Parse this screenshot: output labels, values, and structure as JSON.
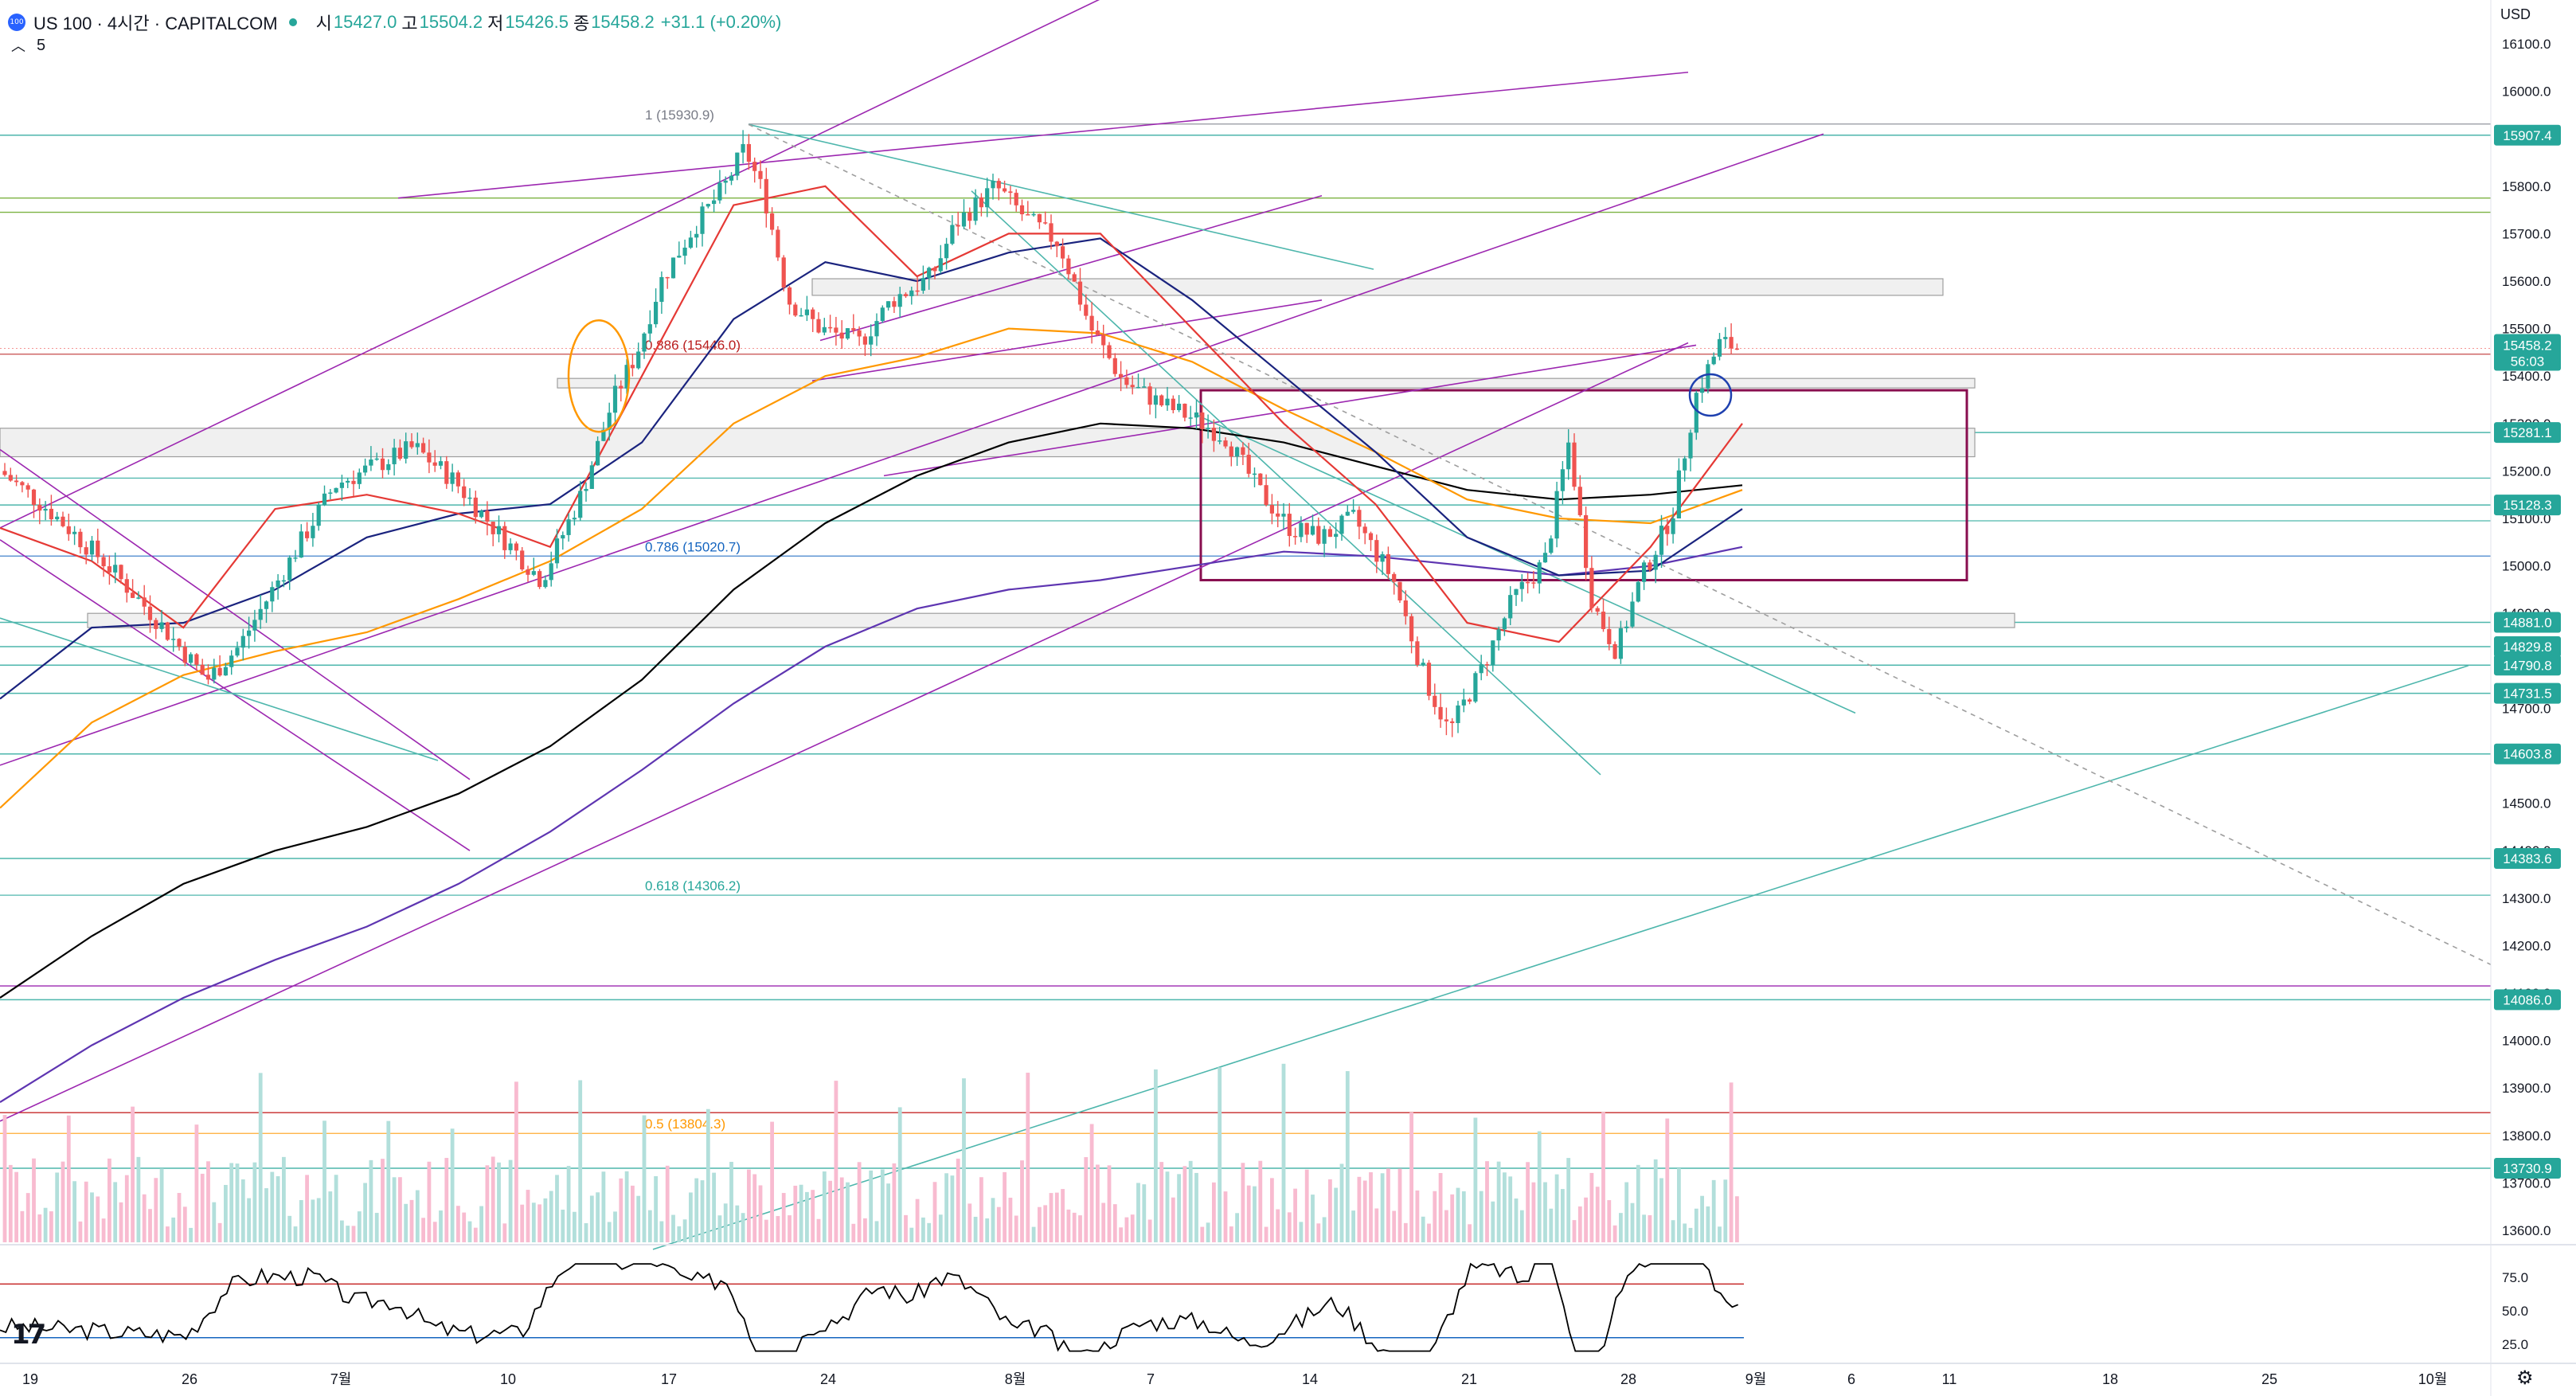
{
  "header": {
    "symbol_badge": "100",
    "title": "US 100 · 4시간 · CAPITALCOM",
    "open_label": "시",
    "open": "15427.0",
    "high_label": "고",
    "high": "15504.2",
    "low_label": "저",
    "low": "15426.5",
    "close_label": "종",
    "close": "15458.2",
    "change": "+31.1 (+0.20%)",
    "indicator_value": "5",
    "currency": "USD"
  },
  "colors": {
    "up": "#26a69a",
    "down": "#ef5350",
    "vol_up": "#b2dfdb",
    "vol_down": "#f8bbd0",
    "teal_line": "#4db6ac",
    "purple_line": "#9c27b0",
    "box_border": "#880e4f",
    "ma_black": "#000000",
    "ma_orange": "#ff9800",
    "ma_navy": "#1a237e",
    "ma_red": "#e53935",
    "ma_purple": "#5e35b1",
    "zone_fill": "#f0f0f0"
  },
  "chart_data": {
    "type": "candlestick",
    "timeframe": "4H",
    "ylim": [
      13550,
      16150
    ],
    "y_ticks": [
      "16100.0",
      "16000.0",
      "15900.0",
      "15800.0",
      "15700.0",
      "15600.0",
      "15500.0",
      "15400.0",
      "15300.0",
      "15200.0",
      "15100.0",
      "15000.0",
      "14900.0",
      "14800.0",
      "14700.0",
      "14600.0",
      "14500.0",
      "14400.0",
      "14300.0",
      "14200.0",
      "14100.0",
      "14000.0",
      "13900.0",
      "13800.0",
      "13700.0",
      "13600.0"
    ],
    "x_labels": [
      "19",
      "26",
      "7월",
      "10",
      "17",
      "24",
      "8월",
      "7",
      "14",
      "21",
      "28",
      "9월",
      "6",
      "11",
      "18",
      "25",
      "10월"
    ],
    "price_labels": [
      {
        "text": "15907.4",
        "value": 15907.4,
        "color": "#26a69a"
      },
      {
        "text": "15281.1",
        "value": 15281.1,
        "color": "#26a69a"
      },
      {
        "text": "15128.3",
        "value": 15128.3,
        "color": "#26a69a"
      },
      {
        "text": "14881.0",
        "value": 14881.0,
        "color": "#26a69a"
      },
      {
        "text": "14829.8",
        "value": 14829.8,
        "color": "#26a69a"
      },
      {
        "text": "14790.8",
        "value": 14790.8,
        "color": "#26a69a"
      },
      {
        "text": "14731.5",
        "value": 14731.5,
        "color": "#26a69a"
      },
      {
        "text": "14603.8",
        "value": 14603.8,
        "color": "#26a69a"
      },
      {
        "text": "14383.6",
        "value": 14383.6,
        "color": "#26a69a"
      },
      {
        "text": "14086.0",
        "value": 14086.0,
        "color": "#26a69a"
      },
      {
        "text": "13730.9",
        "value": 13730.9,
        "color": "#26a69a"
      }
    ],
    "current_price": {
      "text": "15458.2",
      "countdown": "56:03",
      "value": 15458.2
    },
    "fib_levels": [
      {
        "text": "1 (15930.9)",
        "value": 15930.9,
        "color": "#787b86"
      },
      {
        "text": "0.886 (15446.0)",
        "value": 15446.0,
        "color": "#b71c1c"
      },
      {
        "text": "0.786 (15020.7)",
        "value": 15020.7,
        "color": "#1565c0"
      },
      {
        "text": "0.618 (14306.2)",
        "value": 14306.2,
        "color": "#26a69a"
      },
      {
        "text": "0.5 (13804.3)",
        "value": 13804.3,
        "color": "#ff9800"
      }
    ],
    "extra_levels": [
      15775,
      15745,
      15185,
      15095,
      14115,
      13848
    ],
    "series": [
      {
        "name": "",
        "color": "#000000",
        "values": [
          14090,
          14220,
          14330,
          14400,
          14450,
          14520,
          14620,
          14760,
          14950,
          15090,
          15190,
          15260,
          15300,
          15290,
          15260,
          15210,
          15160,
          15140,
          15150,
          15170
        ]
      },
      {
        "name": "",
        "color": "#5e35b1",
        "values": [
          13870,
          13990,
          14090,
          14170,
          14240,
          14330,
          14440,
          14570,
          14710,
          14830,
          14910,
          14950,
          14970,
          15000,
          15030,
          15020,
          15000,
          14980,
          15000,
          15040
        ]
      },
      {
        "name": "",
        "color": "#ff9800",
        "values": [
          14490,
          14670,
          14770,
          14820,
          14860,
          14930,
          15010,
          15120,
          15300,
          15400,
          15440,
          15500,
          15490,
          15430,
          15330,
          15240,
          15140,
          15100,
          15090,
          15160
        ]
      },
      {
        "name": "",
        "color": "#1a237e",
        "values": [
          14720,
          14870,
          14880,
          14950,
          15060,
          15110,
          15130,
          15260,
          15520,
          15640,
          15600,
          15660,
          15690,
          15560,
          15400,
          15240,
          15060,
          14980,
          14990,
          15120
        ]
      },
      {
        "name": "",
        "color": "#e53935",
        "values": [
          15080,
          15010,
          14870,
          15120,
          15150,
          15110,
          15040,
          15400,
          15760,
          15800,
          15610,
          15700,
          15700,
          15500,
          15300,
          15130,
          14880,
          14840,
          15040,
          15300
        ]
      }
    ],
    "oscillator": {
      "ticks": [
        "75.0",
        "50.0",
        "25.0"
      ],
      "upper": 70,
      "lower": 30,
      "ylim": [
        18,
        88
      ]
    },
    "annotations": [
      "orange ellipse",
      "blue circle",
      "rectangle box",
      "gray zones",
      "purple channels",
      "teal trendlines"
    ]
  }
}
